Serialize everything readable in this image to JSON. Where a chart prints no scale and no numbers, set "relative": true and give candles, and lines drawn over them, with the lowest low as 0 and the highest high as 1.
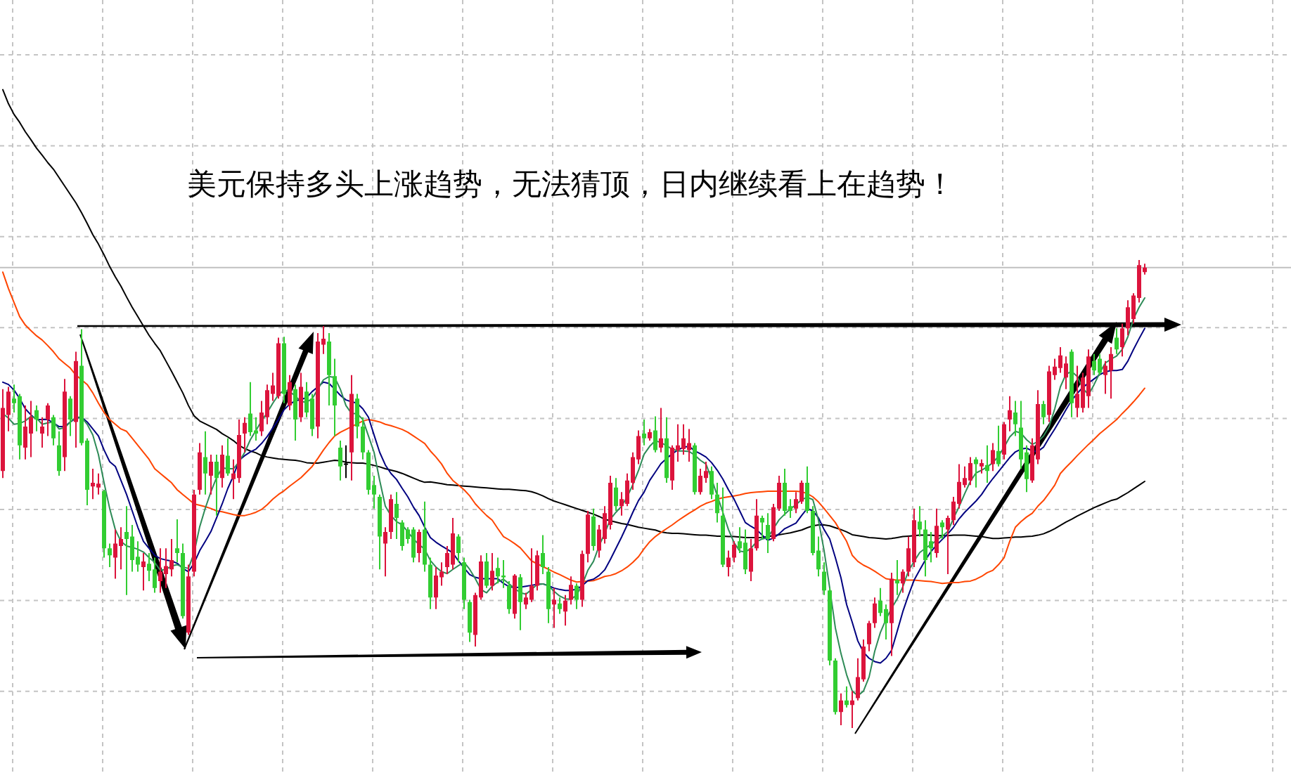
{
  "chart_data": {
    "type": "candlestick",
    "title": "美元保持多头上涨趋势，无法猜顶，日内继续看上在趋势！",
    "relative": true,
    "grid": true,
    "categories": [
      null,
      null,
      null,
      null,
      null,
      null,
      null,
      null,
      null,
      null,
      null,
      null,
      null,
      null,
      null,
      null,
      null,
      null,
      null,
      null,
      null,
      null,
      null,
      null,
      null,
      null,
      null,
      null,
      null,
      null,
      null,
      null,
      null,
      null,
      null,
      null,
      null,
      null,
      null,
      null,
      null,
      null,
      null,
      null,
      null,
      null,
      null,
      null,
      null,
      null,
      null,
      null,
      null,
      null,
      null,
      null,
      null,
      null,
      null,
      null,
      null,
      null,
      null,
      null,
      null,
      null,
      null,
      null,
      null,
      null,
      null,
      null,
      null,
      null,
      null,
      null,
      null,
      null,
      null,
      null,
      null,
      null,
      null,
      null,
      null,
      null,
      null,
      null,
      null,
      null,
      null,
      null,
      null,
      null,
      null,
      null,
      null,
      null,
      null,
      null,
      null,
      null,
      null,
      null,
      null,
      null,
      null,
      null,
      null,
      null,
      null,
      null,
      null,
      null,
      null,
      null,
      null,
      null,
      null,
      null,
      null,
      null,
      null,
      null,
      null,
      null,
      null,
      null,
      null,
      null,
      null,
      null,
      null,
      null,
      null,
      null,
      null,
      null,
      null,
      null,
      null,
      null,
      null,
      null,
      null,
      null,
      null,
      null,
      null,
      null,
      null,
      null,
      null,
      null,
      null,
      null,
      null,
      null,
      null,
      null,
      null,
      null,
      null,
      null,
      null,
      null,
      null,
      null,
      null,
      null,
      null,
      null,
      null,
      null,
      null,
      null,
      null,
      null,
      null,
      null,
      null,
      null,
      null,
      null,
      null,
      null,
      null,
      null,
      null,
      null,
      null,
      null,
      null,
      null,
      null,
      null,
      null,
      null,
      null,
      null,
      null,
      null,
      null,
      null
    ],
    "ohlc": [
      [
        0.549,
        0.724,
        0.534,
        0.684
      ],
      [
        0.669,
        0.729,
        0.634,
        0.719
      ],
      [
        0.704,
        0.734,
        0.674,
        0.694
      ],
      [
        0.709,
        0.714,
        0.574,
        0.604
      ],
      [
        0.599,
        0.689,
        0.574,
        0.644
      ],
      [
        0.629,
        0.699,
        0.579,
        0.664
      ],
      [
        0.679,
        0.689,
        0.634,
        0.659
      ],
      [
        0.629,
        0.664,
        0.599,
        0.644
      ],
      [
        0.659,
        0.694,
        0.624,
        0.689
      ],
      [
        0.664,
        0.669,
        0.604,
        0.619
      ],
      [
        0.604,
        0.634,
        0.539,
        0.549
      ],
      [
        0.579,
        0.746,
        0.549,
        0.719
      ],
      [
        0.704,
        0.709,
        0.624,
        0.659
      ],
      [
        0.654,
        0.804,
        0.599,
        0.784
      ],
      [
        0.774,
        0.852,
        0.604,
        0.609
      ],
      [
        0.614,
        0.619,
        0.476,
        0.509
      ],
      [
        0.516,
        0.554,
        0.489,
        0.524
      ],
      [
        0.514,
        0.544,
        0.499,
        0.522
      ],
      [
        0.506,
        0.509,
        0.364,
        0.384
      ],
      [
        0.384,
        0.394,
        0.344,
        0.369
      ],
      [
        0.364,
        0.424,
        0.319,
        0.394
      ],
      [
        0.389,
        0.429,
        0.339,
        0.404
      ],
      [
        0.419,
        0.474,
        0.284,
        0.404
      ],
      [
        0.409,
        0.434,
        0.334,
        0.359
      ],
      [
        0.366,
        0.399,
        0.334,
        0.349
      ],
      [
        0.344,
        0.374,
        0.294,
        0.356
      ],
      [
        0.351,
        0.374,
        0.314,
        0.336
      ],
      [
        0.339,
        0.364,
        0.289,
        0.299
      ],
      [
        0.314,
        0.384,
        0.289,
        0.334
      ],
      [
        0.329,
        0.384,
        0.299,
        0.346
      ],
      [
        0.339,
        0.404,
        0.324,
        0.359
      ],
      [
        0.384,
        0.446,
        0.354,
        0.374
      ],
      [
        0.374,
        0.394,
        0.234,
        0.239
      ],
      [
        0.204,
        0.349,
        0.199,
        0.324
      ],
      [
        0.334,
        0.509,
        0.324,
        0.499
      ],
      [
        0.509,
        0.609,
        0.499,
        0.589
      ],
      [
        0.579,
        0.634,
        0.499,
        0.544
      ],
      [
        0.539,
        0.584,
        0.499,
        0.569
      ],
      [
        0.569,
        0.584,
        0.454,
        0.534
      ],
      [
        0.534,
        0.604,
        0.514,
        0.584
      ],
      [
        0.582,
        0.619,
        0.539,
        0.544
      ],
      [
        0.532,
        0.574,
        0.489,
        0.544
      ],
      [
        0.534,
        0.659,
        0.524,
        0.626
      ],
      [
        0.629,
        0.664,
        0.589,
        0.652
      ],
      [
        0.672,
        0.739,
        0.624,
        0.632
      ],
      [
        0.636,
        0.664,
        0.614,
        0.629
      ],
      [
        0.634,
        0.699,
        0.624,
        0.674
      ],
      [
        0.664,
        0.734,
        0.649,
        0.722
      ],
      [
        0.714,
        0.759,
        0.699,
        0.732
      ],
      [
        0.709,
        0.834,
        0.704,
        0.822
      ],
      [
        0.822,
        0.836,
        0.694,
        0.714
      ],
      [
        0.689,
        0.754,
        0.679,
        0.739
      ],
      [
        0.724,
        0.734,
        0.614,
        0.659
      ],
      [
        0.664,
        0.759,
        0.654,
        0.729
      ],
      [
        0.719,
        0.739,
        0.664,
        0.674
      ],
      [
        0.704,
        0.714,
        0.624,
        0.639
      ],
      [
        0.644,
        0.844,
        0.619,
        0.826
      ],
      [
        0.819,
        0.859,
        0.799,
        0.832
      ],
      [
        0.826,
        0.844,
        0.689,
        0.754
      ],
      [
        0.752,
        0.789,
        0.624,
        0.689
      ],
      [
        0.599,
        0.614,
        0.529,
        0.559
      ],
      [
        0.564,
        0.604,
        0.534,
        0.564
      ],
      [
        0.589,
        0.754,
        0.529,
        0.714
      ],
      [
        0.704,
        0.714,
        0.619,
        0.644
      ],
      [
        0.644,
        0.664,
        0.574,
        0.589
      ],
      [
        0.589,
        0.594,
        0.499,
        0.509
      ],
      [
        0.519,
        0.539,
        0.469,
        0.499
      ],
      [
        0.494,
        0.499,
        0.339,
        0.409
      ],
      [
        0.394,
        0.429,
        0.324,
        0.419
      ],
      [
        0.419,
        0.499,
        0.404,
        0.489
      ],
      [
        0.479,
        0.504,
        0.404,
        0.449
      ],
      [
        0.439,
        0.444,
        0.379,
        0.389
      ],
      [
        0.424,
        0.429,
        0.394,
        0.404
      ],
      [
        0.424,
        0.429,
        0.354,
        0.364
      ],
      [
        0.374,
        0.424,
        0.354,
        0.419
      ],
      [
        0.424,
        0.484,
        0.334,
        0.349
      ],
      [
        0.349,
        0.364,
        0.254,
        0.279
      ],
      [
        0.279,
        0.344,
        0.254,
        0.326
      ],
      [
        0.322,
        0.354,
        0.304,
        0.334
      ],
      [
        0.344,
        0.389,
        0.329,
        0.374
      ],
      [
        0.349,
        0.449,
        0.339,
        0.416
      ],
      [
        0.409,
        0.414,
        0.354,
        0.374
      ],
      [
        0.354,
        0.364,
        0.254,
        0.274
      ],
      [
        0.269,
        0.274,
        0.184,
        0.204
      ],
      [
        0.199,
        0.289,
        0.174,
        0.284
      ],
      [
        0.279,
        0.369,
        0.274,
        0.356
      ],
      [
        0.356,
        0.374,
        0.299,
        0.304
      ],
      [
        0.304,
        0.374,
        0.294,
        0.336
      ],
      [
        0.342,
        0.364,
        0.309,
        0.324
      ],
      [
        0.326,
        0.359,
        0.299,
        0.322
      ],
      [
        0.304,
        0.314,
        0.244,
        0.254
      ],
      [
        0.244,
        0.329,
        0.234,
        0.326
      ],
      [
        0.322,
        0.329,
        0.209,
        0.269
      ],
      [
        0.264,
        0.289,
        0.254,
        0.279
      ],
      [
        0.274,
        0.384,
        0.269,
        0.304
      ],
      [
        0.304,
        0.379,
        0.294,
        0.369
      ],
      [
        0.374,
        0.412,
        0.329,
        0.344
      ],
      [
        0.334,
        0.344,
        0.224,
        0.254
      ],
      [
        0.264,
        0.299,
        0.214,
        0.274
      ],
      [
        0.266,
        0.279,
        0.244,
        0.254
      ],
      [
        0.249,
        0.284,
        0.219,
        0.272
      ],
      [
        0.274,
        0.324,
        0.264,
        0.306
      ],
      [
        0.304,
        0.309,
        0.254,
        0.274
      ],
      [
        0.274,
        0.379,
        0.259,
        0.372
      ],
      [
        0.372,
        0.464,
        0.354,
        0.456
      ],
      [
        0.452,
        0.469,
        0.379,
        0.389
      ],
      [
        0.379,
        0.434,
        0.364,
        0.424
      ],
      [
        0.404,
        0.474,
        0.394,
        0.459
      ],
      [
        0.434,
        0.539,
        0.424,
        0.524
      ],
      [
        0.514,
        0.534,
        0.464,
        0.474
      ],
      [
        0.474,
        0.504,
        0.454,
        0.489
      ],
      [
        0.479,
        0.544,
        0.474,
        0.529
      ],
      [
        0.524,
        0.589,
        0.509,
        0.579
      ],
      [
        0.574,
        0.636,
        0.564,
        0.624
      ],
      [
        0.629,
        0.659,
        0.604,
        0.619
      ],
      [
        0.619,
        0.639,
        0.614,
        0.632
      ],
      [
        0.636,
        0.666,
        0.589,
        0.594
      ],
      [
        0.599,
        0.684,
        0.589,
        0.619
      ],
      [
        0.619,
        0.664,
        0.524,
        0.534
      ],
      [
        0.529,
        0.604,
        0.509,
        0.599
      ],
      [
        0.594,
        0.649,
        0.569,
        0.604
      ],
      [
        0.596,
        0.649,
        0.584,
        0.619
      ],
      [
        0.594,
        0.639,
        0.569,
        0.609
      ],
      [
        0.604,
        0.609,
        0.499,
        0.504
      ],
      [
        0.504,
        0.554,
        0.499,
        0.539
      ],
      [
        0.534,
        0.569,
        0.524,
        0.549
      ],
      [
        0.549,
        0.559,
        0.489,
        0.499
      ],
      [
        0.499,
        0.524,
        0.439,
        0.459
      ],
      [
        0.454,
        0.514,
        0.344,
        0.349
      ],
      [
        0.344,
        0.379,
        0.324,
        0.364
      ],
      [
        0.364,
        0.399,
        0.354,
        0.392
      ],
      [
        0.399,
        0.429,
        0.374,
        0.384
      ],
      [
        0.396,
        0.424,
        0.329,
        0.339
      ],
      [
        0.334,
        0.404,
        0.314,
        0.384
      ],
      [
        0.384,
        0.489,
        0.379,
        0.454
      ],
      [
        0.449,
        0.454,
        0.404,
        0.439
      ],
      [
        0.434,
        0.459,
        0.374,
        0.404
      ],
      [
        0.404,
        0.479,
        0.399,
        0.472
      ],
      [
        0.469,
        0.539,
        0.464,
        0.524
      ],
      [
        0.524,
        0.554,
        0.454,
        0.464
      ],
      [
        0.474,
        0.489,
        0.449,
        0.464
      ],
      [
        0.469,
        0.504,
        0.459,
        0.489
      ],
      [
        0.484,
        0.529,
        0.479,
        0.524
      ],
      [
        0.524,
        0.559,
        0.459,
        0.464
      ],
      [
        0.464,
        0.474,
        0.369,
        0.374
      ],
      [
        0.379,
        0.409,
        0.324,
        0.339
      ],
      [
        0.334,
        0.354,
        0.284,
        0.294
      ],
      [
        0.294,
        0.299,
        0.134,
        0.144
      ],
      [
        0.144,
        0.149,
        0.029,
        0.034
      ],
      [
        0.034,
        0.074,
        0.006,
        0.059
      ],
      [
        0.059,
        0.089,
        0.044,
        0.049
      ],
      [
        0.049,
        0.079,
        0,
        0.059
      ],
      [
        0.064,
        0.149,
        0.059,
        0.109
      ],
      [
        0.104,
        0.189,
        0.099,
        0.174
      ],
      [
        0.179,
        0.229,
        0.164,
        0.224
      ],
      [
        0.224,
        0.279,
        0.214,
        0.266
      ],
      [
        0.272,
        0.299,
        0.239,
        0.246
      ],
      [
        0.254,
        0.264,
        0.189,
        0.224
      ],
      [
        0.224,
        0.332,
        0.154,
        0.319
      ],
      [
        0.316,
        0.359,
        0.284,
        0.309
      ],
      [
        0.309,
        0.339,
        0.289,
        0.334
      ],
      [
        0.334,
        0.409,
        0.324,
        0.384
      ],
      [
        0.354,
        0.469,
        0.344,
        0.444
      ],
      [
        0.441,
        0.474,
        0.409,
        0.424
      ],
      [
        0.424,
        0.444,
        0.324,
        0.359
      ],
      [
        0.399,
        0.419,
        0.354,
        0.384
      ],
      [
        0.374,
        0.469,
        0.364,
        0.432
      ],
      [
        0.439,
        0.444,
        0.404,
        0.429
      ],
      [
        0.424,
        0.454,
        0.329,
        0.449
      ],
      [
        0.444,
        0.494,
        0.434,
        0.484
      ],
      [
        0.479,
        0.564,
        0.469,
        0.526
      ],
      [
        0.519,
        0.559,
        0.514,
        0.534
      ],
      [
        0.529,
        0.579,
        0.519,
        0.566
      ],
      [
        0.574,
        0.579,
        0.514,
        0.564
      ],
      [
        0.559,
        0.574,
        0.544,
        0.566
      ],
      [
        0.562,
        0.604,
        0.524,
        0.549
      ],
      [
        0.564,
        0.609,
        0.549,
        0.594
      ],
      [
        0.592,
        0.646,
        0.559,
        0.564
      ],
      [
        0.584,
        0.654,
        0.574,
        0.649
      ],
      [
        0.659,
        0.709,
        0.634,
        0.679
      ],
      [
        0.674,
        0.699,
        0.624,
        0.649
      ],
      [
        0.642,
        0.699,
        0.554,
        0.574
      ],
      [
        0.589,
        0.604,
        0.504,
        0.532
      ],
      [
        0.529,
        0.619,
        0.524,
        0.604
      ],
      [
        0.574,
        0.722,
        0.564,
        0.692
      ],
      [
        0.692,
        0.699,
        0.649,
        0.664
      ],
      [
        0.669,
        0.774,
        0.654,
        0.762
      ],
      [
        0.754,
        0.789,
        0.744,
        0.772
      ],
      [
        0.769,
        0.814,
        0.759,
        0.796
      ],
      [
        0.749,
        0.794,
        0.724,
        0.779
      ],
      [
        0.804,
        0.809,
        0.664,
        0.694
      ],
      [
        0.684,
        0.774,
        0.664,
        0.714
      ],
      [
        0.684,
        0.759,
        0.674,
        0.749
      ],
      [
        0.709,
        0.809,
        0.684,
        0.794
      ],
      [
        0.784,
        0.799,
        0.754,
        0.764
      ],
      [
        0.789,
        0.799,
        0.754,
        0.759
      ],
      [
        0.754,
        0.784,
        0.714,
        0.774
      ],
      [
        0.764,
        0.814,
        0.704,
        0.799
      ],
      [
        0.834,
        0.854,
        0.799,
        0.809
      ],
      [
        0.814,
        0.864,
        0.794,
        0.854
      ],
      [
        0.854,
        0.914,
        0.839,
        0.899
      ],
      [
        0.874,
        0.929,
        0.864,
        0.924
      ],
      [
        0.919,
        1,
        0.909,
        0.989
      ],
      [
        0.974,
        0.992,
        0.969,
        0.984
      ]
    ],
    "colors": [
      "#dc143c",
      "#dc143c",
      "#32cd32",
      "#32cd32",
      "#dc143c",
      "#dc143c",
      "#32cd32",
      "#dc143c",
      "#dc143c",
      "#32cd32",
      "#32cd32",
      "#dc143c",
      "#32cd32",
      "#dc143c",
      "#32cd32",
      "#32cd32",
      "#dc143c",
      "#dc143c",
      "#32cd32",
      "#32cd32",
      "#dc143c",
      "#dc143c",
      "#32cd32",
      "#32cd32",
      "#32cd32",
      "#dc143c",
      "#32cd32",
      "#32cd32",
      "#dc143c",
      "#dc143c",
      "#dc143c",
      "#32cd32",
      "#32cd32",
      "#dc143c",
      "#dc143c",
      "#dc143c",
      "#32cd32",
      "#dc143c",
      "#32cd32",
      "#dc143c",
      "#32cd32",
      "#dc143c",
      "#dc143c",
      "#dc143c",
      "#32cd32",
      "#32cd32",
      "#dc143c",
      "#dc143c",
      "#dc143c",
      "#dc143c",
      "#32cd32",
      "#dc143c",
      "#32cd32",
      "#dc143c",
      "#32cd32",
      "#32cd32",
      "#dc143c",
      "#dc143c",
      "#32cd32",
      "#32cd32",
      "#32cd32",
      "#000000",
      "#dc143c",
      "#32cd32",
      "#32cd32",
      "#32cd32",
      "#32cd32",
      "#32cd32",
      "#dc143c",
      "#dc143c",
      "#32cd32",
      "#32cd32",
      "#32cd32",
      "#32cd32",
      "#dc143c",
      "#32cd32",
      "#32cd32",
      "#dc143c",
      "#dc143c",
      "#dc143c",
      "#dc143c",
      "#32cd32",
      "#32cd32",
      "#32cd32",
      "#dc143c",
      "#dc143c",
      "#32cd32",
      "#dc143c",
      "#32cd32",
      "#32cd32",
      "#32cd32",
      "#dc143c",
      "#32cd32",
      "#dc143c",
      "#dc143c",
      "#dc143c",
      "#32cd32",
      "#32cd32",
      "#dc143c",
      "#32cd32",
      "#dc143c",
      "#dc143c",
      "#32cd32",
      "#dc143c",
      "#dc143c",
      "#32cd32",
      "#dc143c",
      "#dc143c",
      "#dc143c",
      "#32cd32",
      "#dc143c",
      "#dc143c",
      "#dc143c",
      "#dc143c",
      "#32cd32",
      "#dc143c",
      "#32cd32",
      "#dc143c",
      "#32cd32",
      "#dc143c",
      "#dc143c",
      "#dc143c",
      "#dc143c",
      "#32cd32",
      "#dc143c",
      "#dc143c",
      "#32cd32",
      "#32cd32",
      "#32cd32",
      "#dc143c",
      "#dc143c",
      "#32cd32",
      "#32cd32",
      "#dc143c",
      "#dc143c",
      "#32cd32",
      "#32cd32",
      "#dc143c",
      "#dc143c",
      "#32cd32",
      "#32cd32",
      "#dc143c",
      "#dc143c",
      "#32cd32",
      "#32cd32",
      "#32cd32",
      "#32cd32",
      "#32cd32",
      "#32cd32",
      "#dc143c",
      "#32cd32",
      "#dc143c",
      "#dc143c",
      "#dc143c",
      "#dc143c",
      "#dc143c",
      "#32cd32",
      "#32cd32",
      "#dc143c",
      "#32cd32",
      "#dc143c",
      "#dc143c",
      "#dc143c",
      "#32cd32",
      "#32cd32",
      "#32cd32",
      "#dc143c",
      "#32cd32",
      "#dc143c",
      "#dc143c",
      "#dc143c",
      "#dc143c",
      "#dc143c",
      "#32cd32",
      "#dc143c",
      "#32cd32",
      "#dc143c",
      "#32cd32",
      "#dc143c",
      "#dc143c",
      "#32cd32",
      "#32cd32",
      "#32cd32",
      "#dc143c",
      "#dc143c",
      "#32cd32",
      "#dc143c",
      "#dc143c",
      "#dc143c",
      "#dc143c",
      "#32cd32",
      "#dc143c",
      "#dc143c",
      "#dc143c",
      "#32cd32",
      "#32cd32",
      "#dc143c",
      "#dc143c",
      "#32cd32",
      "#dc143c",
      "#dc143c",
      "#dc143c",
      "#dc143c",
      "#dc143c"
    ],
    "series": [
      {
        "type": "line",
        "color": "#000000",
        "values": [
          1.364,
          1.334,
          1.311,
          1.294,
          1.274,
          1.257,
          1.239,
          1.224,
          1.208,
          1.194,
          1.176,
          1.158,
          1.14,
          1.122,
          1.101,
          1.078,
          1.054,
          1.034,
          1.011,
          0.986,
          0.964,
          0.944,
          0.921,
          0.899,
          0.879,
          0.859,
          0.839,
          0.822,
          0.806,
          0.784,
          0.762,
          0.739,
          0.716,
          0.689,
          0.667,
          0.656,
          0.65,
          0.644,
          0.638,
          0.629,
          0.622,
          0.614,
          0.604,
          0.597,
          0.592,
          0.588,
          0.582,
          0.579,
          0.577,
          0.575,
          0.574,
          0.573,
          0.572,
          0.57,
          0.567,
          0.566,
          0.566,
          0.568,
          0.57,
          0.572,
          0.571,
          0.568,
          0.567,
          0.566,
          0.566,
          0.564,
          0.561,
          0.558,
          0.554,
          0.551,
          0.548,
          0.544,
          0.539,
          0.534,
          0.529,
          0.525,
          0.526,
          0.524,
          0.522,
          0.52,
          0.519,
          0.518,
          0.517,
          0.516,
          0.515,
          0.514,
          0.513,
          0.512,
          0.511,
          0.51,
          0.51,
          0.509,
          0.508,
          0.507,
          0.505,
          0.501,
          0.496,
          0.49,
          0.485,
          0.481,
          0.477,
          0.473,
          0.469,
          0.465,
          0.461,
          0.457,
          0.452,
          0.446,
          0.443,
          0.44,
          0.437,
          0.435,
          0.432,
          0.429,
          0.427,
          0.425,
          0.423,
          0.419,
          0.417,
          0.416,
          0.416,
          0.415,
          0.414,
          0.413,
          0.412,
          0.412,
          0.411,
          0.41,
          0.41,
          0.409,
          0.409,
          0.408,
          0.407,
          0.407,
          0.407,
          0.407,
          0.409,
          0.411,
          0.413,
          0.415,
          0.417,
          0.42,
          0.423,
          0.428,
          0.432,
          0.434,
          0.434,
          0.432,
          0.428,
          0.424,
          0.419,
          0.413,
          0.411,
          0.409,
          0.407,
          0.406,
          0.405,
          0.404,
          0.405,
          0.407,
          0.409,
          0.41,
          0.411,
          0.412,
          0.412,
          0.412,
          0.411,
          0.411,
          0.411,
          0.412,
          0.412,
          0.412,
          0.411,
          0.41,
          0.409,
          0.407,
          0.405,
          0.405,
          0.406,
          0.407,
          0.408,
          0.408,
          0.409,
          0.41,
          0.412,
          0.415,
          0.42,
          0.426,
          0.433,
          0.44,
          0.446,
          0.453,
          0.459,
          0.465,
          0.471,
          0.476,
          0.481,
          0.486,
          0.489,
          0.496,
          0.503,
          0.511,
          0.519,
          0.527
        ]
      },
      {
        "type": "line",
        "color": "#ff4500",
        "values": [
          0.974,
          0.939,
          0.909,
          0.879,
          0.861,
          0.849,
          0.838,
          0.829,
          0.817,
          0.804,
          0.789,
          0.779,
          0.769,
          0.754,
          0.744,
          0.734,
          0.716,
          0.694,
          0.674,
          0.659,
          0.649,
          0.639,
          0.634,
          0.619,
          0.604,
          0.589,
          0.574,
          0.554,
          0.544,
          0.534,
          0.524,
          0.509,
          0.499,
          0.489,
          0.479,
          0.476,
          0.473,
          0.469,
          0.464,
          0.462,
          0.459,
          0.456,
          0.454,
          0.454,
          0.457,
          0.461,
          0.467,
          0.477,
          0.489,
          0.499,
          0.507,
          0.517,
          0.526,
          0.535,
          0.547,
          0.559,
          0.576,
          0.594,
          0.61,
          0.624,
          0.632,
          0.638,
          0.644,
          0.65,
          0.656,
          0.659,
          0.657,
          0.654,
          0.649,
          0.646,
          0.642,
          0.638,
          0.632,
          0.624,
          0.616,
          0.608,
          0.592,
          0.579,
          0.564,
          0.544,
          0.529,
          0.519,
          0.509,
          0.496,
          0.479,
          0.466,
          0.454,
          0.444,
          0.426,
          0.409,
          0.402,
          0.394,
          0.385,
          0.371,
          0.357,
          0.351,
          0.345,
          0.339,
          0.333,
          0.328,
          0.322,
          0.316,
          0.312,
          0.313,
          0.314,
          0.315,
          0.319,
          0.324,
          0.326,
          0.33,
          0.336,
          0.344,
          0.354,
          0.366,
          0.383,
          0.398,
          0.409,
          0.418,
          0.426,
          0.434,
          0.443,
          0.451,
          0.459,
          0.466,
          0.474,
          0.48,
          0.484,
          0.489,
          0.492,
          0.494,
          0.496,
          0.498,
          0.501,
          0.503,
          0.504,
          0.505,
          0.506,
          0.506,
          0.506,
          0.506,
          0.506,
          0.506,
          0.505,
          0.501,
          0.494,
          0.483,
          0.469,
          0.454,
          0.439,
          0.419,
          0.399,
          0.369,
          0.356,
          0.348,
          0.342,
          0.335,
          0.327,
          0.319,
          0.317,
          0.316,
          0.316,
          0.316,
          0.316,
          0.315,
          0.314,
          0.313,
          0.311,
          0.309,
          0.31,
          0.311,
          0.311,
          0.313,
          0.314,
          0.318,
          0.324,
          0.332,
          0.337,
          0.349,
          0.364,
          0.399,
          0.429,
          0.441,
          0.451,
          0.459,
          0.474,
          0.486,
          0.502,
          0.519,
          0.544,
          0.557,
          0.569,
          0.582,
          0.594,
          0.606,
          0.617,
          0.629,
          0.639,
          0.649,
          0.659,
          0.672,
          0.684,
          0.697,
          0.711,
          0.726
        ]
      },
      {
        "type": "line",
        "color": "#000080",
        "values": [
          0.739,
          0.734,
          0.722,
          0.704,
          0.682,
          0.669,
          0.659,
          0.659,
          0.659,
          0.652,
          0.644,
          0.644,
          0.654,
          0.662,
          0.664,
          0.654,
          0.639,
          0.624,
          0.594,
          0.569,
          0.559,
          0.529,
          0.499,
          0.464,
          0.429,
          0.399,
          0.384,
          0.369,
          0.362,
          0.359,
          0.357,
          0.352,
          0.341,
          0.334,
          0.352,
          0.379,
          0.399,
          0.42,
          0.449,
          0.479,
          0.512,
          0.539,
          0.572,
          0.582,
          0.59,
          0.596,
          0.608,
          0.623,
          0.641,
          0.659,
          0.68,
          0.692,
          0.699,
          0.702,
          0.706,
          0.719,
          0.729,
          0.739,
          0.736,
          0.724,
          0.711,
          0.701,
          0.697,
          0.694,
          0.682,
          0.664,
          0.626,
          0.589,
          0.562,
          0.544,
          0.531,
          0.512,
          0.494,
          0.472,
          0.454,
          0.429,
          0.407,
          0.397,
          0.389,
          0.382,
          0.374,
          0.357,
          0.342,
          0.328,
          0.322,
          0.319,
          0.319,
          0.319,
          0.319,
          0.309,
          0.302,
          0.3,
          0.301,
          0.303,
          0.305,
          0.307,
          0.308,
          0.304,
          0.299,
          0.296,
          0.294,
          0.294,
          0.297,
          0.304,
          0.315,
          0.318,
          0.326,
          0.338,
          0.36,
          0.384,
          0.408,
          0.434,
          0.461,
          0.486,
          0.504,
          0.529,
          0.547,
          0.565,
          0.576,
          0.586,
          0.594,
          0.6,
          0.602,
          0.592,
          0.586,
          0.579,
          0.567,
          0.551,
          0.532,
          0.509,
          0.489,
          0.464,
          0.439,
          0.431,
          0.424,
          0.412,
          0.401,
          0.406,
          0.415,
          0.426,
          0.432,
          0.438,
          0.454,
          0.469,
          0.464,
          0.449,
          0.424,
          0.404,
          0.364,
          0.321,
          0.264,
          0.226,
          0.186,
          0.162,
          0.149,
          0.142,
          0.139,
          0.149,
          0.166,
          0.207,
          0.249,
          0.284,
          0.316,
          0.338,
          0.359,
          0.377,
          0.391,
          0.403,
          0.415,
          0.429,
          0.447,
          0.461,
          0.473,
          0.485,
          0.499,
          0.517,
          0.533,
          0.548,
          0.563,
          0.578,
          0.59,
          0.596,
          0.598,
          0.592,
          0.591,
          0.6,
          0.62,
          0.639,
          0.659,
          0.68,
          0.7,
          0.715,
          0.728,
          0.737,
          0.746,
          0.755,
          0.761,
          0.764,
          0.764,
          0.766,
          0.784,
          0.809,
          0.832,
          0.854
        ]
      },
      {
        "type": "line",
        "color": "#2e8b57",
        "values": [
          0.672,
          0.662,
          0.649,
          0.651,
          0.656,
          0.666,
          0.662,
          0.649,
          0.652,
          0.654,
          0.639,
          0.642,
          0.654,
          0.664,
          0.664,
          0.649,
          0.626,
          0.584,
          0.524,
          0.469,
          0.424,
          0.399,
          0.389,
          0.386,
          0.382,
          0.376,
          0.364,
          0.354,
          0.337,
          0.339,
          0.346,
          0.349,
          0.344,
          0.341,
          0.374,
          0.43,
          0.47,
          0.505,
          0.535,
          0.556,
          0.554,
          0.554,
          0.569,
          0.589,
          0.616,
          0.636,
          0.656,
          0.674,
          0.694,
          0.712,
          0.722,
          0.719,
          0.709,
          0.698,
          0.696,
          0.704,
          0.724,
          0.744,
          0.751,
          0.749,
          0.724,
          0.689,
          0.672,
          0.672,
          0.659,
          0.624,
          0.589,
          0.529,
          0.474,
          0.454,
          0.441,
          0.434,
          0.419,
          0.404,
          0.392,
          0.382,
          0.358,
          0.344,
          0.334,
          0.33,
          0.339,
          0.347,
          0.354,
          0.339,
          0.319,
          0.296,
          0.289,
          0.303,
          0.312,
          0.318,
          0.308,
          0.298,
          0.289,
          0.286,
          0.296,
          0.307,
          0.308,
          0.304,
          0.292,
          0.282,
          0.276,
          0.275,
          0.284,
          0.306,
          0.337,
          0.356,
          0.389,
          0.416,
          0.446,
          0.461,
          0.474,
          0.494,
          0.52,
          0.55,
          0.585,
          0.602,
          0.614,
          0.61,
          0.603,
          0.596,
          0.592,
          0.592,
          0.591,
          0.583,
          0.572,
          0.564,
          0.532,
          0.497,
          0.461,
          0.424,
          0.396,
          0.378,
          0.376,
          0.384,
          0.398,
          0.404,
          0.407,
          0.426,
          0.445,
          0.457,
          0.468,
          0.477,
          0.488,
          0.493,
          0.488,
          0.444,
          0.379,
          0.299,
          0.214,
          0.159,
          0.114,
          0.079,
          0.069,
          0.079,
          0.109,
          0.164,
          0.204,
          0.232,
          0.256,
          0.276,
          0.302,
          0.336,
          0.356,
          0.375,
          0.384,
          0.392,
          0.401,
          0.41,
          0.42,
          0.448,
          0.473,
          0.501,
          0.527,
          0.545,
          0.551,
          0.558,
          0.567,
          0.581,
          0.6,
          0.622,
          0.634,
          0.63,
          0.616,
          0.606,
          0.612,
          0.624,
          0.644,
          0.682,
          0.729,
          0.756,
          0.762,
          0.751,
          0.726,
          0.712,
          0.734,
          0.759,
          0.78,
          0.788,
          0.795,
          0.809,
          0.836,
          0.874,
          0.899,
          0.919
        ]
      }
    ],
    "ref_lines": [
      {
        "axis": "y",
        "value": 0.984,
        "color": "#c0c0c0"
      }
    ]
  }
}
